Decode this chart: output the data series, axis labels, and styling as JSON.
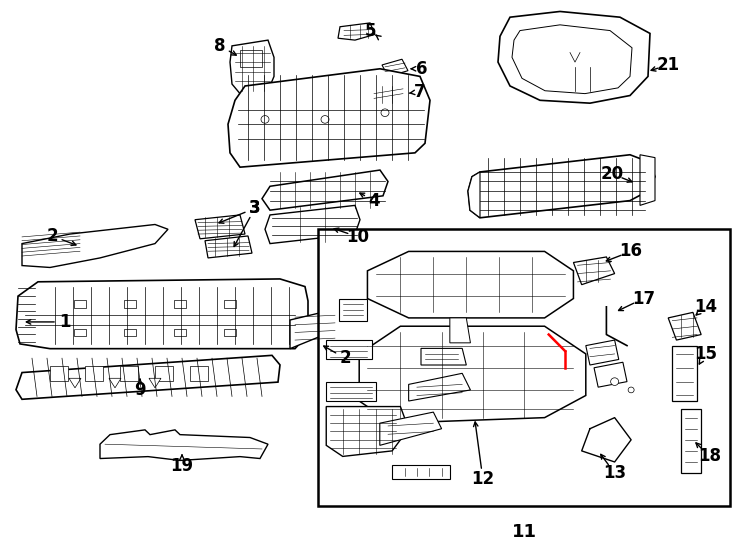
{
  "bg_color": "#ffffff",
  "line_color": "#000000",
  "red_color": "#ff0000",
  "fig_width": 7.34,
  "fig_height": 5.4,
  "dpi": 100
}
